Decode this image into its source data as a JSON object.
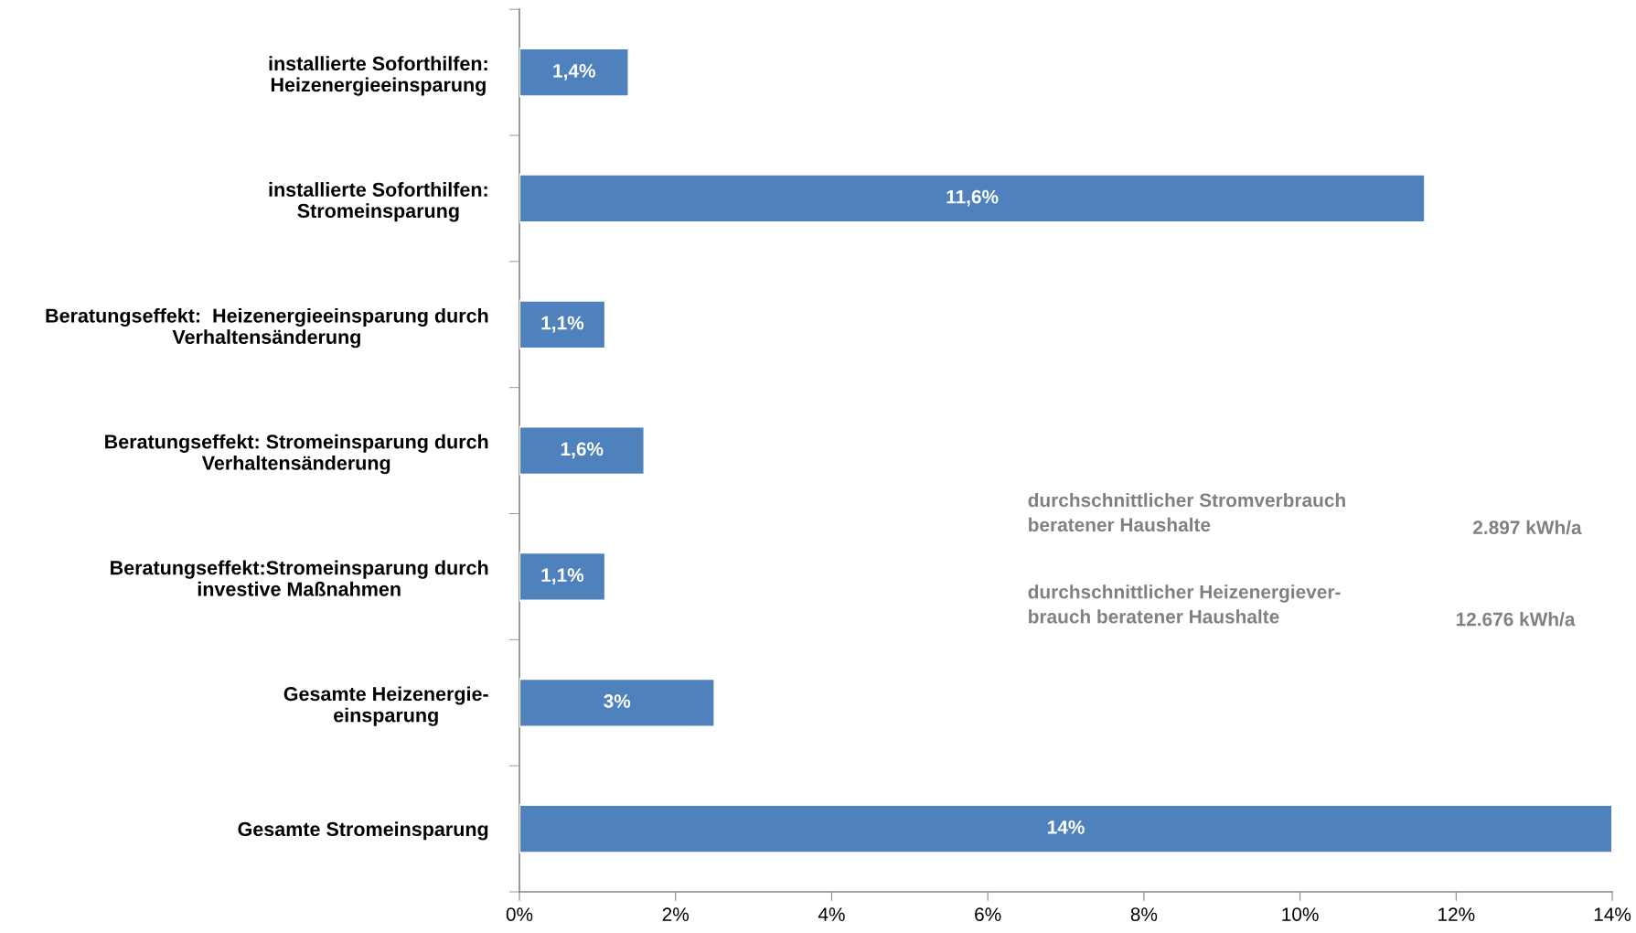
{
  "chart_data": {
    "type": "bar",
    "orientation": "horizontal",
    "categories": [
      "installierte Soforthilfen:\nHeizenergieeinsparung",
      "installierte Soforthilfen:\nStromeinsparung",
      "Beratungseffekt:  Heizenergieeinsparung durch\nVerhaltensänderung",
      "Beratungseffekt: Stromeinsparung durch\nVerhaltensänderung",
      "Beratungseffekt:Stromeinsparung durch\ninvestive Maßnahmen",
      "Gesamte Heizenergie-\neinsparung",
      "Gesamte Stromeinsparung"
    ],
    "values": [
      1.4,
      11.6,
      1.1,
      1.6,
      1.1,
      2.5,
      14
    ],
    "value_labels": [
      "1,4%",
      "11,6%",
      "1,1%",
      "1,6%",
      "1,1%",
      "3%",
      "14%"
    ],
    "color": "#4f81bd",
    "xlim": [
      0,
      14
    ],
    "xticks": [
      {
        "value": 0,
        "label": "0%"
      },
      {
        "value": 2,
        "label": "2%"
      },
      {
        "value": 4,
        "label": "4%"
      },
      {
        "value": 6,
        "label": "6%"
      },
      {
        "value": 8,
        "label": "8%"
      },
      {
        "value": 10,
        "label": "10%"
      },
      {
        "value": 12,
        "label": "12%"
      },
      {
        "value": 14,
        "label": "14%"
      }
    ],
    "annotations": [
      "durchschnittlicher Stromverbrauch\nberatener Haushalte",
      "2.897 kWh/a",
      "durchschnittlicher Heizenergiever-\nbrauch beratener Haushalte",
      "12.676 kWh/a"
    ],
    "grid": false
  }
}
